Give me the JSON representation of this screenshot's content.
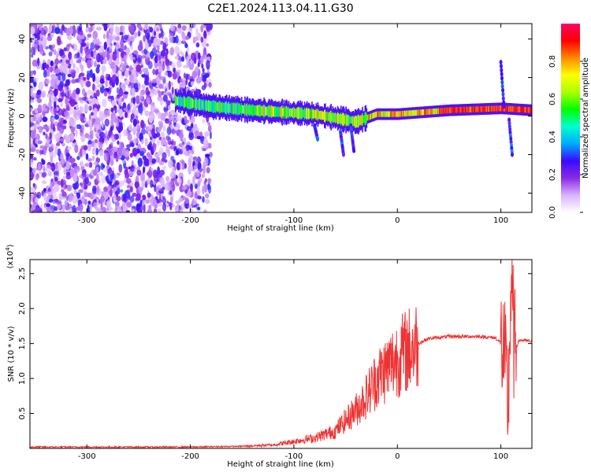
{
  "title": "C2E1.2024.113.04.11.G30",
  "chart_data": [
    {
      "type": "heatmap",
      "xlabel": "Height of straight line (km)",
      "ylabel": "Frequency (Hz)",
      "xlim": [
        -355,
        130
      ],
      "ylim": [
        -50,
        48
      ],
      "xticks": [
        -300,
        -200,
        -100,
        0,
        100
      ],
      "yticks": [
        -40,
        -20,
        0,
        20,
        40
      ],
      "colorbar": {
        "label": "Normalized spectral amplitude",
        "range": [
          0.0,
          1.0
        ],
        "ticks": [
          "0.0",
          "0.2",
          "0.4",
          "0.6",
          "0.8"
        ],
        "colors": [
          "#ffffff",
          "#d9b3ff",
          "#8a2be2",
          "#3a0aff",
          "#00aaff",
          "#00ffd0",
          "#00ff00",
          "#aaff00",
          "#ffff00",
          "#ff8800",
          "#ff0000",
          "#ff0066"
        ]
      },
      "ridge_center_hz": [
        {
          "x": -215,
          "y": 8
        },
        {
          "x": -180,
          "y": 5
        },
        {
          "x": -140,
          "y": 3
        },
        {
          "x": -110,
          "y": 2
        },
        {
          "x": -80,
          "y": 1
        },
        {
          "x": -50,
          "y": -2
        },
        {
          "x": -40,
          "y": -3
        },
        {
          "x": -20,
          "y": 1
        },
        {
          "x": 0,
          "y": 1
        },
        {
          "x": 50,
          "y": 3
        },
        {
          "x": 100,
          "y": 4
        },
        {
          "x": 130,
          "y": 3
        }
      ]
    },
    {
      "type": "line",
      "xlabel": "Height of straight line (km)",
      "ylabel": "SNR (10 * v/v)",
      "multiplier": "(x10",
      "multiplier_exp": "4",
      "xlim": [
        -355,
        130
      ],
      "ylim": [
        0,
        2.7
      ],
      "xticks": [
        -300,
        -200,
        -100,
        0,
        100
      ],
      "yticks": [
        "0.5",
        "1.0",
        "1.5",
        "2.0",
        "2.5"
      ],
      "series": [
        {
          "color": "#ee3333",
          "x": [
            -355,
            -300,
            -250,
            -200,
            -150,
            -120,
            -100,
            -80,
            -60,
            -50,
            -40,
            -30,
            -20,
            -10,
            0,
            10,
            20,
            30,
            50,
            80,
            95,
            100,
            104,
            107,
            110,
            113,
            118,
            130
          ],
          "y": [
            0.02,
            0.02,
            0.02,
            0.02,
            0.03,
            0.05,
            0.1,
            0.15,
            0.25,
            0.4,
            0.55,
            0.75,
            1.0,
            1.15,
            1.3,
            1.4,
            1.5,
            1.57,
            1.6,
            1.6,
            1.58,
            1.5,
            1.2,
            0.6,
            2.4,
            1.4,
            1.55,
            1.53
          ]
        }
      ]
    }
  ]
}
